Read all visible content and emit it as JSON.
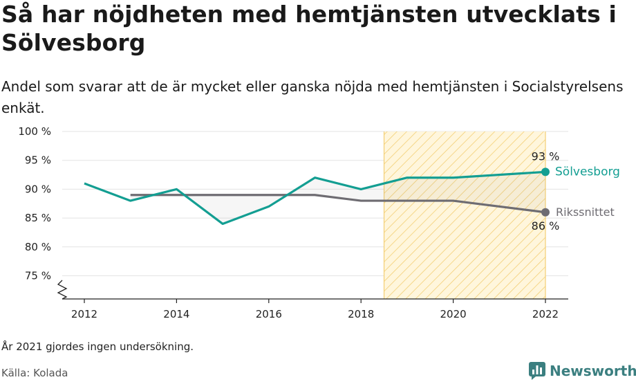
{
  "title": "Så har nöjdheten med hemtjänsten utvecklats i Sölvesborg",
  "subtitle": "Andel som svarar att de är mycket eller ganska nöjda med hemtjänsten i Socialstyrelsens enkät.",
  "footnote": "År 2021 gjordes ingen undersökning.",
  "source": "Källa: Kolada",
  "brand": {
    "name": "Newsworthy",
    "icon": "newsworthy-logo-icon"
  },
  "colors": {
    "solvesborg": "#139e92",
    "riket": "#6e6c72",
    "highlight_fill": "#fff6dc",
    "highlight_hatch": "#f3cf74",
    "brand": "#3b7f80"
  },
  "chart_data": {
    "type": "line",
    "x": [
      2012,
      2013,
      2014,
      2015,
      2016,
      2017,
      2018,
      2019,
      2020,
      2022
    ],
    "xticks": [
      2012,
      2014,
      2016,
      2018,
      2020,
      2022
    ],
    "xlim": [
      2012,
      2022
    ],
    "ylim": [
      75,
      100
    ],
    "yticks": [
      75,
      80,
      85,
      90,
      95,
      100
    ],
    "ytick_labels": [
      "75 %",
      "80 %",
      "85 %",
      "90 %",
      "95 %",
      "100 %"
    ],
    "axis_break": true,
    "grid": true,
    "highlight_range": [
      2018.5,
      2022
    ],
    "series": [
      {
        "name": "Sölvesborg",
        "color": "#139e92",
        "values": [
          91,
          88,
          90,
          84,
          87,
          92,
          90,
          92,
          92,
          93
        ],
        "end_label": "93 %"
      },
      {
        "name": "Rikssnittet",
        "color": "#6e6c72",
        "values": [
          null,
          89,
          89,
          89,
          89,
          89,
          88,
          88,
          88,
          86
        ],
        "end_label": "86 %"
      }
    ]
  }
}
